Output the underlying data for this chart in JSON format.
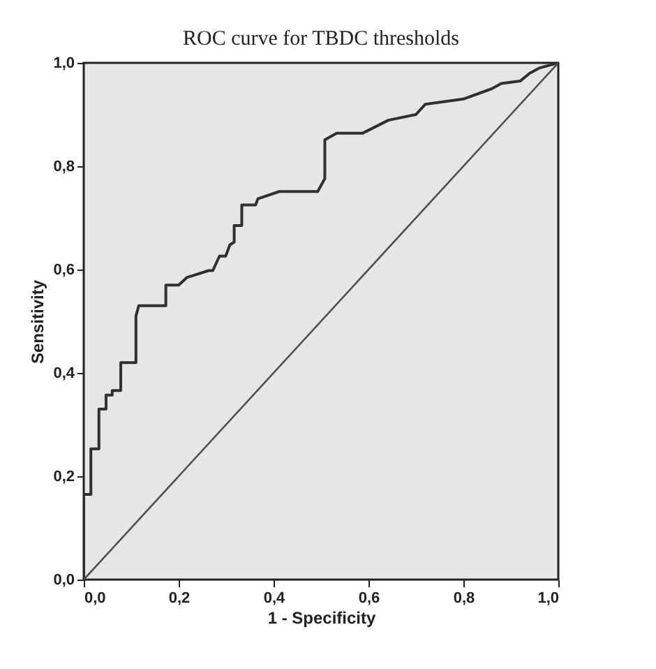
{
  "chart_data": {
    "type": "line",
    "title": "ROC curve for TBDC thresholds",
    "xlabel": "1 - Specificity",
    "ylabel": "Sensitivity",
    "xlim": [
      0,
      1
    ],
    "ylim": [
      0,
      1
    ],
    "xticks": [
      {
        "value": 0,
        "label": "0,0"
      },
      {
        "value": 0.2,
        "label": "0,2"
      },
      {
        "value": 0.4,
        "label": "0,4"
      },
      {
        "value": 0.6,
        "label": "0,6"
      },
      {
        "value": 0.8,
        "label": "0,8"
      },
      {
        "value": 1,
        "label": "1,0"
      }
    ],
    "yticks": [
      {
        "value": 0,
        "label": "0,0"
      },
      {
        "value": 0.2,
        "label": "0,2"
      },
      {
        "value": 0.4,
        "label": "0,4"
      },
      {
        "value": 0.6,
        "label": "0,6"
      },
      {
        "value": 0.8,
        "label": "0,8"
      },
      {
        "value": 1,
        "label": "1,0"
      }
    ],
    "grid": false,
    "marker": "none",
    "line_style": "solid",
    "series": [
      {
        "color": "#303030",
        "x": [
          0,
          0,
          0.015,
          0.015,
          0.032,
          0.032,
          0.047,
          0.047,
          0.06,
          0.06,
          0.078,
          0.078,
          0.11,
          0.11,
          0.116,
          0.173,
          0.173,
          0.2,
          0.218,
          0.236,
          0.263,
          0.272,
          0.286,
          0.299,
          0.308,
          0.317,
          0.317,
          0.333,
          0.333,
          0.362,
          0.367,
          0.412,
          0.493,
          0.508,
          0.508,
          0.533,
          0.588,
          0.642,
          0.7,
          0.72,
          0.8,
          0.86,
          0.88,
          0.92,
          0.94,
          0.96,
          1.0
        ],
        "values": [
          0,
          0.165,
          0.165,
          0.253,
          0.253,
          0.33,
          0.33,
          0.357,
          0.357,
          0.366,
          0.366,
          0.42,
          0.42,
          0.51,
          0.53,
          0.53,
          0.57,
          0.57,
          0.585,
          0.59,
          0.598,
          0.598,
          0.626,
          0.626,
          0.648,
          0.653,
          0.685,
          0.685,
          0.725,
          0.725,
          0.737,
          0.751,
          0.751,
          0.776,
          0.851,
          0.864,
          0.864,
          0.889,
          0.9,
          0.92,
          0.93,
          0.95,
          0.96,
          0.965,
          0.98,
          0.99,
          1.0
        ]
      },
      {
        "color": "#505050",
        "x": [
          0,
          1
        ],
        "values": [
          0,
          1
        ]
      }
    ]
  }
}
